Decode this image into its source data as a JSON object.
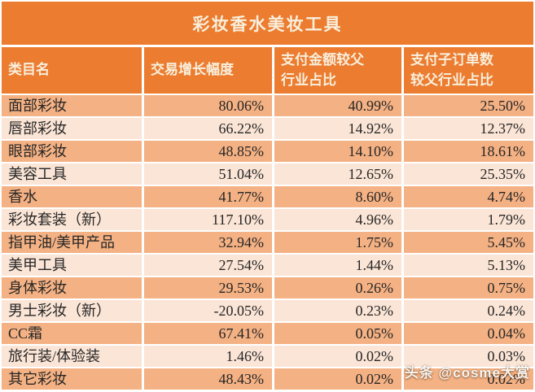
{
  "title": "彩妆香水美妆工具",
  "watermark": "头条 @cosme大赏",
  "colors": {
    "header_orange": "#EC7C30",
    "row_dark_peach": "#F4B183",
    "row_light_peach": "#FBE5D6",
    "header_text_cream": "#F8EFDC",
    "body_text": "#262626"
  },
  "chart_data": {
    "type": "table",
    "title": "彩妆香水美妆工具",
    "columns": [
      "类目名",
      "交易增长幅度",
      "支付金额较父\n行业占比",
      "支付子订单数\n较父行业占比"
    ],
    "rows": [
      [
        "面部彩妆",
        "80.06%",
        "40.99%",
        "25.50%"
      ],
      [
        "唇部彩妆",
        "66.22%",
        "14.92%",
        "12.37%"
      ],
      [
        "眼部彩妆",
        "48.85%",
        "14.10%",
        "18.61%"
      ],
      [
        "美容工具",
        "51.04%",
        "12.65%",
        "25.35%"
      ],
      [
        "香水",
        "41.77%",
        "8.60%",
        "4.74%"
      ],
      [
        "彩妆套装（新）",
        "117.10%",
        "4.96%",
        "1.79%"
      ],
      [
        "指甲油/美甲产品",
        "32.94%",
        "1.75%",
        "5.45%"
      ],
      [
        "美甲工具",
        "27.54%",
        "1.44%",
        "5.13%"
      ],
      [
        "身体彩妆",
        "29.53%",
        "0.26%",
        "0.75%"
      ],
      [
        "男士彩妆（新）",
        "-20.05%",
        "0.23%",
        "0.24%"
      ],
      [
        "CC霜",
        "67.41%",
        "0.05%",
        "0.04%"
      ],
      [
        "旅行装/体验装",
        "1.46%",
        "0.02%",
        "0.03%"
      ],
      [
        "其它彩妆",
        "48.43%",
        "0.02%",
        "0.02%"
      ]
    ],
    "layout": {
      "row_striping": "odd rows dark peach, even rows light peach",
      "value_alignment": "right",
      "category_alignment": "left"
    }
  }
}
